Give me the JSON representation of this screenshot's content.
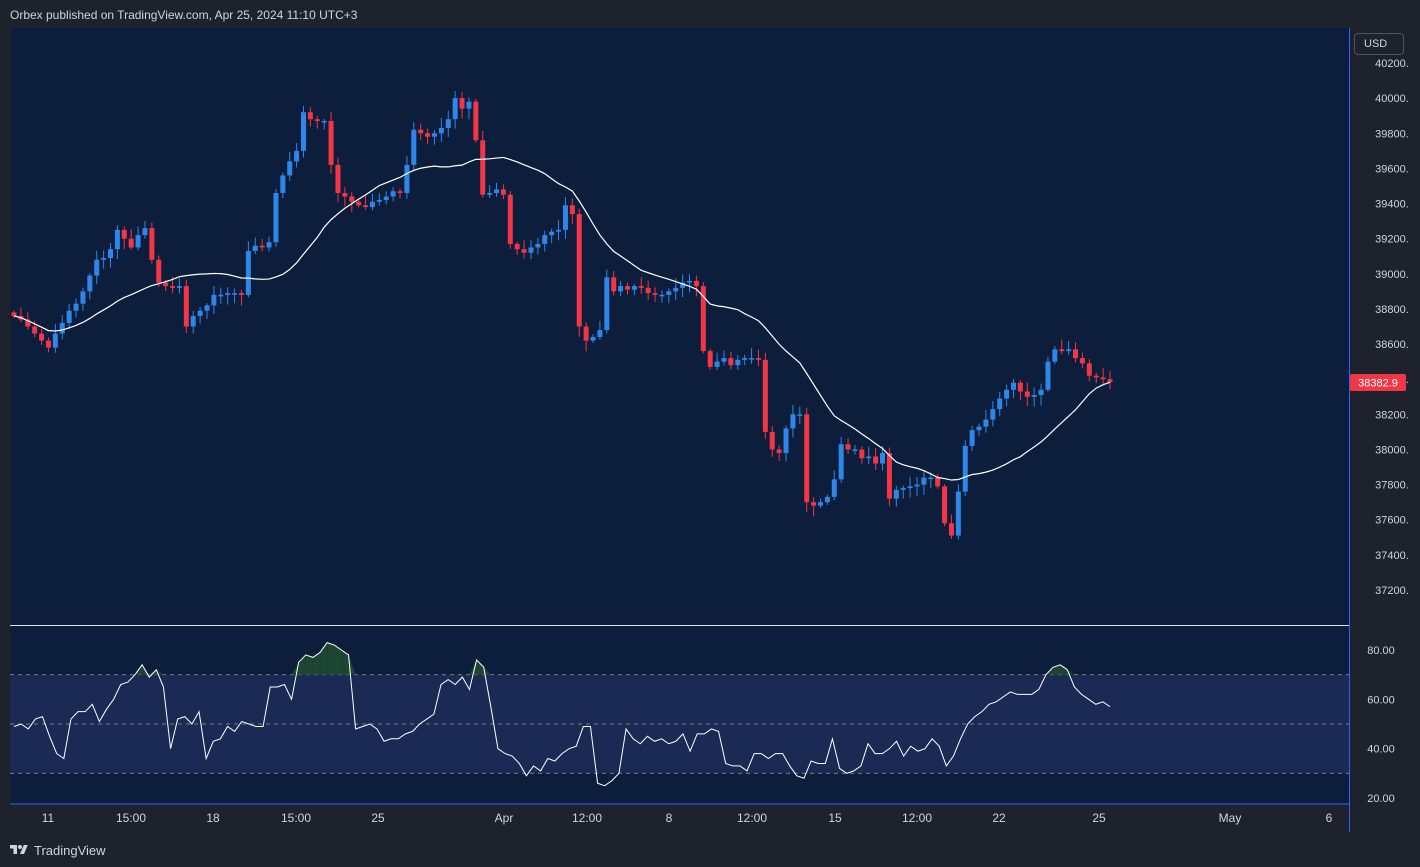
{
  "header": {
    "publisher": "Orbex published on TradingView.com, Apr 25, 2024 11:10 UTC+3"
  },
  "footer": {
    "brand": "TradingView"
  },
  "currency_button": {
    "label": "USD"
  },
  "price_badge": {
    "label": "38382.9",
    "color": "#f23645"
  },
  "colors": {
    "background": "#0c1e3b",
    "up": "#2e87e8",
    "down": "#f23645",
    "ma": "#ffffff",
    "rsi_band": "#1b2a55",
    "overbought_fill": "#1c4532"
  },
  "chart_data": [
    {
      "type": "candlestick",
      "title": "",
      "ylim": [
        37000,
        40300
      ],
      "y_ticks": [
        "40200.0",
        "40000.0",
        "39800.0",
        "39600.0",
        "39400.0",
        "39200.0",
        "39000.0",
        "38800.0",
        "38600.0",
        "38400.0",
        "38200.0",
        "38000.0",
        "37800.0",
        "37600.0",
        "37400.0",
        "37200.0"
      ],
      "x_ticks": [
        "11",
        "15:00",
        "18",
        "15:00",
        "25",
        "Apr",
        "12:00",
        "8",
        "12:00",
        "15",
        "12:00",
        "22",
        "25",
        "May",
        "6"
      ],
      "last_price": 38382.9,
      "close_series": [
        38760,
        38740,
        38700,
        38660,
        38620,
        38580,
        38660,
        38720,
        38790,
        38830,
        38900,
        38990,
        39080,
        39090,
        39140,
        39250,
        39200,
        39150,
        39220,
        39260,
        39080,
        38950,
        38930,
        38920,
        38930,
        38700,
        38760,
        38790,
        38820,
        38880,
        38880,
        38890,
        38890,
        38880,
        39130,
        39160,
        39150,
        39180,
        39460,
        39560,
        39640,
        39700,
        39920,
        39880,
        39870,
        39870,
        39620,
        39460,
        39440,
        39410,
        39390,
        39380,
        39410,
        39420,
        39440,
        39470,
        39460,
        39620,
        39820,
        39800,
        39780,
        39800,
        39830,
        39880,
        40000,
        39940,
        39980,
        39760,
        39450,
        39460,
        39480,
        39450,
        39170,
        39140,
        39120,
        39150,
        39170,
        39220,
        39240,
        39250,
        39390,
        39340,
        38700,
        38620,
        38640,
        38680,
        38980,
        38900,
        38930,
        38910,
        38930,
        38920,
        38890,
        38880,
        38880,
        38900,
        38920,
        38950,
        38960,
        38930,
        38560,
        38470,
        38500,
        38520,
        38480,
        38510,
        38520,
        38520,
        38510,
        38100,
        38000,
        37980,
        38120,
        38200,
        38200,
        37700,
        37680,
        37700,
        37730,
        37830,
        38030,
        38000,
        38000,
        37950,
        37960,
        37920,
        37980,
        37720,
        37770,
        37780,
        37790,
        37800,
        37840,
        37840,
        37790,
        37580,
        37510,
        37760,
        38020,
        38110,
        38130,
        38170,
        38230,
        38290,
        38340,
        38380,
        38330,
        38300,
        38310,
        38340,
        38500,
        38570,
        38560,
        38570,
        38520,
        38490,
        38420,
        38410,
        38400,
        38383
      ],
      "ma_period": 20
    },
    {
      "type": "line",
      "title": "",
      "ylim": [
        20,
        90
      ],
      "y_ticks": [
        "80.00",
        "60.00",
        "40.00",
        "20.00"
      ],
      "levels": [
        70,
        50,
        30
      ],
      "values": [
        49,
        50,
        48,
        52,
        53,
        45,
        38,
        36,
        52,
        55,
        55,
        58,
        51,
        56,
        60,
        66,
        67,
        70,
        74,
        69,
        72,
        65,
        40,
        52,
        53,
        50,
        55,
        36,
        43,
        44,
        49,
        47,
        51,
        50,
        49,
        49,
        65,
        65,
        66,
        60,
        75,
        78,
        77,
        79,
        83,
        82,
        80,
        78,
        48,
        49,
        50,
        48,
        43,
        44,
        44,
        46,
        47,
        50,
        52,
        54,
        66,
        68,
        66,
        69,
        64,
        76,
        73,
        57,
        40,
        38,
        37,
        34,
        29,
        33,
        31,
        36,
        35,
        38,
        40,
        41,
        49,
        49,
        26,
        25,
        27,
        30,
        48,
        44,
        42,
        45,
        43,
        44,
        42,
        43,
        46,
        39,
        46,
        46,
        48,
        47,
        34,
        33,
        33,
        31,
        38,
        38,
        36,
        38,
        38,
        33,
        29,
        28,
        35,
        34,
        34,
        44,
        32,
        30,
        31,
        33,
        42,
        38,
        38,
        40,
        43,
        37,
        41,
        39,
        40,
        44,
        41,
        33,
        37,
        44,
        50,
        53,
        55,
        58,
        59,
        61,
        63,
        62,
        62,
        62,
        64,
        70,
        73,
        74,
        72,
        65,
        62,
        60,
        58,
        59,
        57
      ]
    }
  ]
}
